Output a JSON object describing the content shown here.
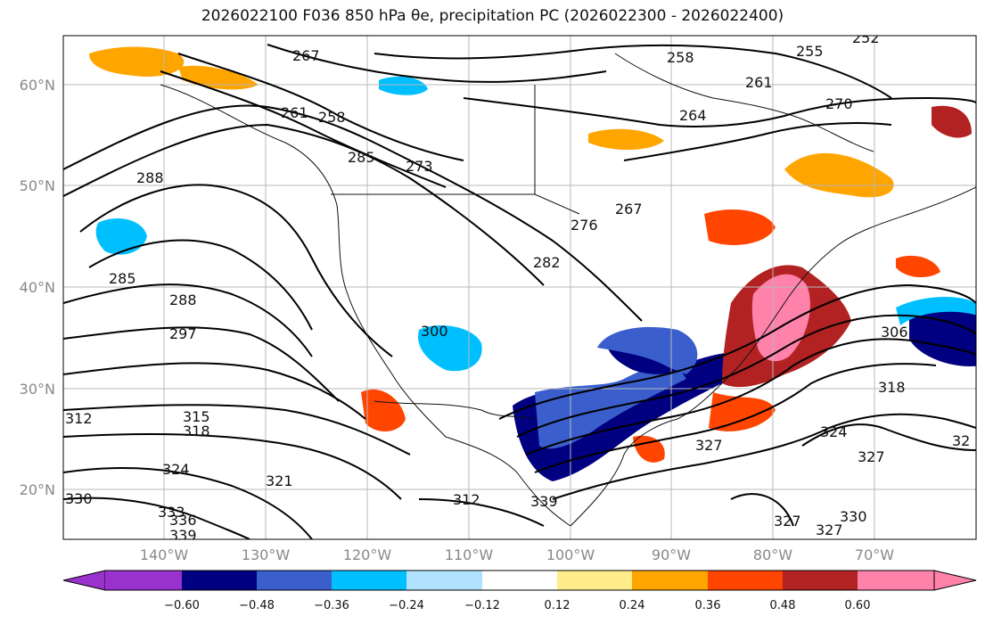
{
  "title": "2026022100 F036 850 hPa θe, precipitation PC (2026022300 - 2026022400)",
  "map": {
    "lat_labels": [
      "60°N",
      "50°N",
      "40°N",
      "30°N",
      "20°N"
    ],
    "lon_labels": [
      "140°W",
      "130°W",
      "120°W",
      "110°W",
      "100°W",
      "90°W",
      "80°W",
      "70°W"
    ],
    "contour_labels": [
      "267",
      "258",
      "255",
      "252",
      "261",
      "270",
      "264",
      "261",
      "258",
      "285",
      "273",
      "288",
      "267",
      "276",
      "282",
      "285",
      "288",
      "297",
      "300",
      "306",
      "312",
      "315",
      "318",
      "324",
      "330",
      "327",
      "333",
      "336",
      "339",
      "321",
      "312",
      "339",
      "327",
      "324",
      "318",
      "327",
      "330",
      "327",
      "32"
    ]
  },
  "colorbar": {
    "ticks": [
      "−0.60",
      "−0.48",
      "−0.36",
      "−0.24",
      "−0.12",
      "0.12",
      "0.24",
      "0.36",
      "0.48",
      "0.60"
    ],
    "colors": [
      "#9932cc",
      "#000080",
      "#3a5fcd",
      "#00bfff",
      "#b0e2ff",
      "#ffffff",
      "#ffec8b",
      "#ffa500",
      "#ff4500",
      "#b22222",
      "#ff82ab"
    ]
  }
}
